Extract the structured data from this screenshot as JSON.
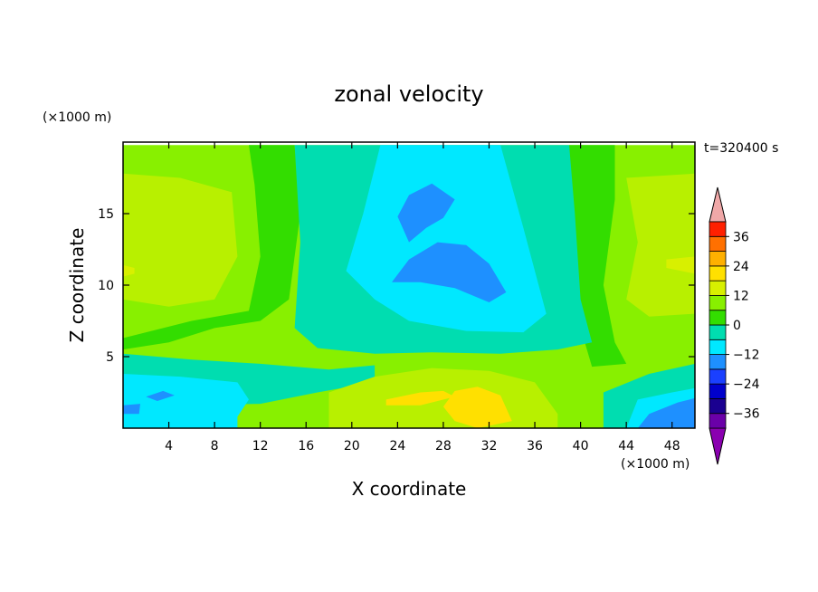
{
  "chart_data": {
    "type": "heatmap",
    "title": "zonal velocity",
    "time_label": "t=320400 s",
    "xlabel": "X coordinate",
    "ylabel": "Z coordinate",
    "x_unit": "(×1000 m)",
    "y_unit": "(×1000 m)",
    "xlim": [
      0,
      50
    ],
    "ylim": [
      0,
      20
    ],
    "x_ticks": [
      4,
      8,
      12,
      16,
      20,
      24,
      28,
      32,
      36,
      40,
      44,
      48
    ],
    "y_ticks": [
      5,
      10,
      15
    ],
    "colorbar": {
      "levels": [
        -42,
        -36,
        -30,
        -24,
        -18,
        -12,
        -6,
        0,
        6,
        12,
        18,
        24,
        30,
        36,
        42
      ],
      "labels": [
        "-36",
        "-24",
        "-12",
        "0",
        "12",
        "24",
        "36"
      ],
      "label_values": [
        -36,
        -24,
        -12,
        0,
        12,
        24,
        36
      ],
      "band_colors": [
        "#6a00a8",
        "#1a0090",
        "#0000cc",
        "#1a40ff",
        "#1e90ff",
        "#00e8ff",
        "#00ddb0",
        "#33dd00",
        "#88f000",
        "#d8f000",
        "#ffe000",
        "#ffb000",
        "#ff7000",
        "#ff2000"
      ],
      "under_color": "#8a00b0",
      "over_color": "#f0a8a8",
      "extend": "both"
    },
    "regions": [
      {
        "label": "background, light green (~0 to 6)",
        "color": "#88f000",
        "points": [
          [
            0,
            19.8
          ],
          [
            50,
            19.8
          ],
          [
            50,
            0
          ],
          [
            0,
            0
          ]
        ]
      },
      {
        "label": "yellow-green upper left (~6 to 12)",
        "color": "#b8f000",
        "points": [
          [
            0,
            17.8
          ],
          [
            5,
            17.5
          ],
          [
            9.5,
            16.5
          ],
          [
            10,
            12
          ],
          [
            8,
            9
          ],
          [
            4,
            8.5
          ],
          [
            0,
            9
          ]
        ]
      },
      {
        "label": "yellow-green upper right (~6 to 12)",
        "color": "#b8f000",
        "points": [
          [
            44,
            17.5
          ],
          [
            50,
            17.8
          ],
          [
            50,
            8
          ],
          [
            46,
            7.8
          ],
          [
            44,
            9
          ],
          [
            45,
            13
          ]
        ]
      },
      {
        "label": "green band left (~0 to -6)",
        "color": "#33dd00",
        "points": [
          [
            11,
            19.8
          ],
          [
            15,
            19.8
          ],
          [
            15.5,
            15
          ],
          [
            14.5,
            9
          ],
          [
            12,
            7.5
          ],
          [
            8,
            7
          ],
          [
            4,
            6
          ],
          [
            0,
            5.5
          ],
          [
            0,
            6.3
          ],
          [
            6,
            7.5
          ],
          [
            11,
            8.2
          ],
          [
            12,
            12
          ],
          [
            11.5,
            17
          ]
        ]
      },
      {
        "label": "green band right (~0 to -6)",
        "color": "#33dd00",
        "points": [
          [
            39,
            19.8
          ],
          [
            43,
            19.8
          ],
          [
            43,
            16
          ],
          [
            42,
            10
          ],
          [
            43,
            6
          ],
          [
            44,
            4.5
          ],
          [
            41,
            4.3
          ],
          [
            40,
            7
          ],
          [
            39.5,
            12
          ],
          [
            39,
            16
          ]
        ]
      },
      {
        "label": "teal centre (~-6 to -12)",
        "color": "#00ddb0",
        "points": [
          [
            15,
            19.8
          ],
          [
            39,
            19.8
          ],
          [
            39.5,
            15
          ],
          [
            40,
            9
          ],
          [
            41,
            6
          ],
          [
            38,
            5.5
          ],
          [
            33,
            5.2
          ],
          [
            27,
            5.3
          ],
          [
            22,
            5.2
          ],
          [
            17,
            5.6
          ],
          [
            15,
            7
          ],
          [
            15.5,
            13
          ]
        ]
      },
      {
        "label": "cyan core (~-12 to -18)",
        "color": "#00e8ff",
        "points": [
          [
            22.5,
            19.8
          ],
          [
            33,
            19.8
          ],
          [
            35,
            14
          ],
          [
            37,
            8
          ],
          [
            35,
            6.7
          ],
          [
            30,
            6.8
          ],
          [
            25,
            7.5
          ],
          [
            22,
            9
          ],
          [
            19.5,
            11
          ],
          [
            21,
            15
          ]
        ]
      },
      {
        "label": "blue upper core (~-18 to -24)",
        "color": "#1e90ff",
        "points": [
          [
            24,
            14.8
          ],
          [
            25,
            16.3
          ],
          [
            27,
            17.1
          ],
          [
            29,
            16
          ],
          [
            28,
            14.7
          ],
          [
            26.5,
            14
          ],
          [
            25,
            13
          ]
        ]
      },
      {
        "label": "blue lower core (~-18 to -24)",
        "color": "#1e90ff",
        "points": [
          [
            23.5,
            10.2
          ],
          [
            25,
            11.8
          ],
          [
            27.5,
            13
          ],
          [
            30,
            12.8
          ],
          [
            32,
            11.5
          ],
          [
            33.5,
            9.5
          ],
          [
            32,
            8.8
          ],
          [
            29,
            9.8
          ],
          [
            26,
            10.2
          ]
        ]
      },
      {
        "label": "teal lower left (~-6 to -12)",
        "color": "#00ddb0",
        "points": [
          [
            0,
            5.2
          ],
          [
            6,
            4.8
          ],
          [
            12,
            4.5
          ],
          [
            18,
            4.1
          ],
          [
            22,
            4.4
          ],
          [
            22,
            3.2
          ],
          [
            17,
            2.5
          ],
          [
            12,
            1.7
          ],
          [
            6,
            1.6
          ],
          [
            0,
            1.9
          ]
        ]
      },
      {
        "label": "cyan lower left (~-12 to -18)",
        "color": "#00e8ff",
        "points": [
          [
            0,
            3.8
          ],
          [
            5,
            3.6
          ],
          [
            10,
            3.2
          ],
          [
            11,
            2
          ],
          [
            10,
            0.8
          ],
          [
            10,
            0
          ],
          [
            0,
            0
          ]
        ]
      },
      {
        "label": "blue patch lower left (~-18 to -24)",
        "color": "#1e90ff",
        "points": [
          [
            2,
            2.2
          ],
          [
            3.5,
            2.6
          ],
          [
            4.5,
            2.3
          ],
          [
            3,
            1.9
          ]
        ]
      },
      {
        "label": "blue patch far left (~-18 to -24)",
        "color": "#1e90ff",
        "points": [
          [
            0,
            1.6
          ],
          [
            1.5,
            1.7
          ],
          [
            1.4,
            1.0
          ],
          [
            0,
            1.0
          ]
        ]
      },
      {
        "label": "yellow-green bottom centre (~6 to 12)",
        "color": "#b8f000",
        "points": [
          [
            18,
            0
          ],
          [
            18,
            2.5
          ],
          [
            22,
            3.6
          ],
          [
            27,
            4.2
          ],
          [
            32,
            4.0
          ],
          [
            36,
            3.2
          ],
          [
            38,
            1
          ],
          [
            38,
            0
          ]
        ]
      },
      {
        "label": "yellow bottom centre (~12 to 18)",
        "color": "#ffe000",
        "points": [
          [
            23,
            2
          ],
          [
            26,
            2.5
          ],
          [
            28,
            2.6
          ],
          [
            29,
            2.2
          ],
          [
            26,
            1.6
          ],
          [
            23,
            1.6
          ]
        ]
      },
      {
        "label": "yellow bottom centre 2 (~12 to 18)",
        "color": "#ffe000",
        "points": [
          [
            29,
            2.6
          ],
          [
            31,
            2.9
          ],
          [
            33,
            2.3
          ],
          [
            34,
            0.5
          ],
          [
            31,
            0
          ],
          [
            29,
            0.5
          ],
          [
            28,
            1.5
          ]
        ]
      },
      {
        "label": "teal lower right (~-6 to -12)",
        "color": "#00ddb0",
        "points": [
          [
            42,
            0
          ],
          [
            42,
            2.5
          ],
          [
            46,
            3.8
          ],
          [
            50,
            4.5
          ],
          [
            50,
            0
          ]
        ]
      },
      {
        "label": "cyan lower right (~-12 to -18)",
        "color": "#00e8ff",
        "points": [
          [
            44,
            0
          ],
          [
            45,
            2
          ],
          [
            48,
            2.5
          ],
          [
            50,
            2.8
          ],
          [
            50,
            0
          ]
        ]
      },
      {
        "label": "blue lower right (~-18 to -24)",
        "color": "#1e90ff",
        "points": [
          [
            45,
            0
          ],
          [
            46,
            1
          ],
          [
            48.5,
            1.8
          ],
          [
            50,
            2.1
          ],
          [
            50,
            0
          ]
        ]
      },
      {
        "label": "yellow patch right (~12 to 18)",
        "color": "#d8f000",
        "points": [
          [
            47.5,
            11.8
          ],
          [
            50,
            12
          ],
          [
            50,
            10.8
          ],
          [
            47.5,
            11.2
          ]
        ]
      },
      {
        "label": "yellow patch left (~12 to 18)",
        "color": "#d8f000",
        "points": [
          [
            0,
            11.4
          ],
          [
            1,
            11.2
          ],
          [
            1,
            10.8
          ],
          [
            0,
            10.6
          ]
        ]
      }
    ]
  }
}
